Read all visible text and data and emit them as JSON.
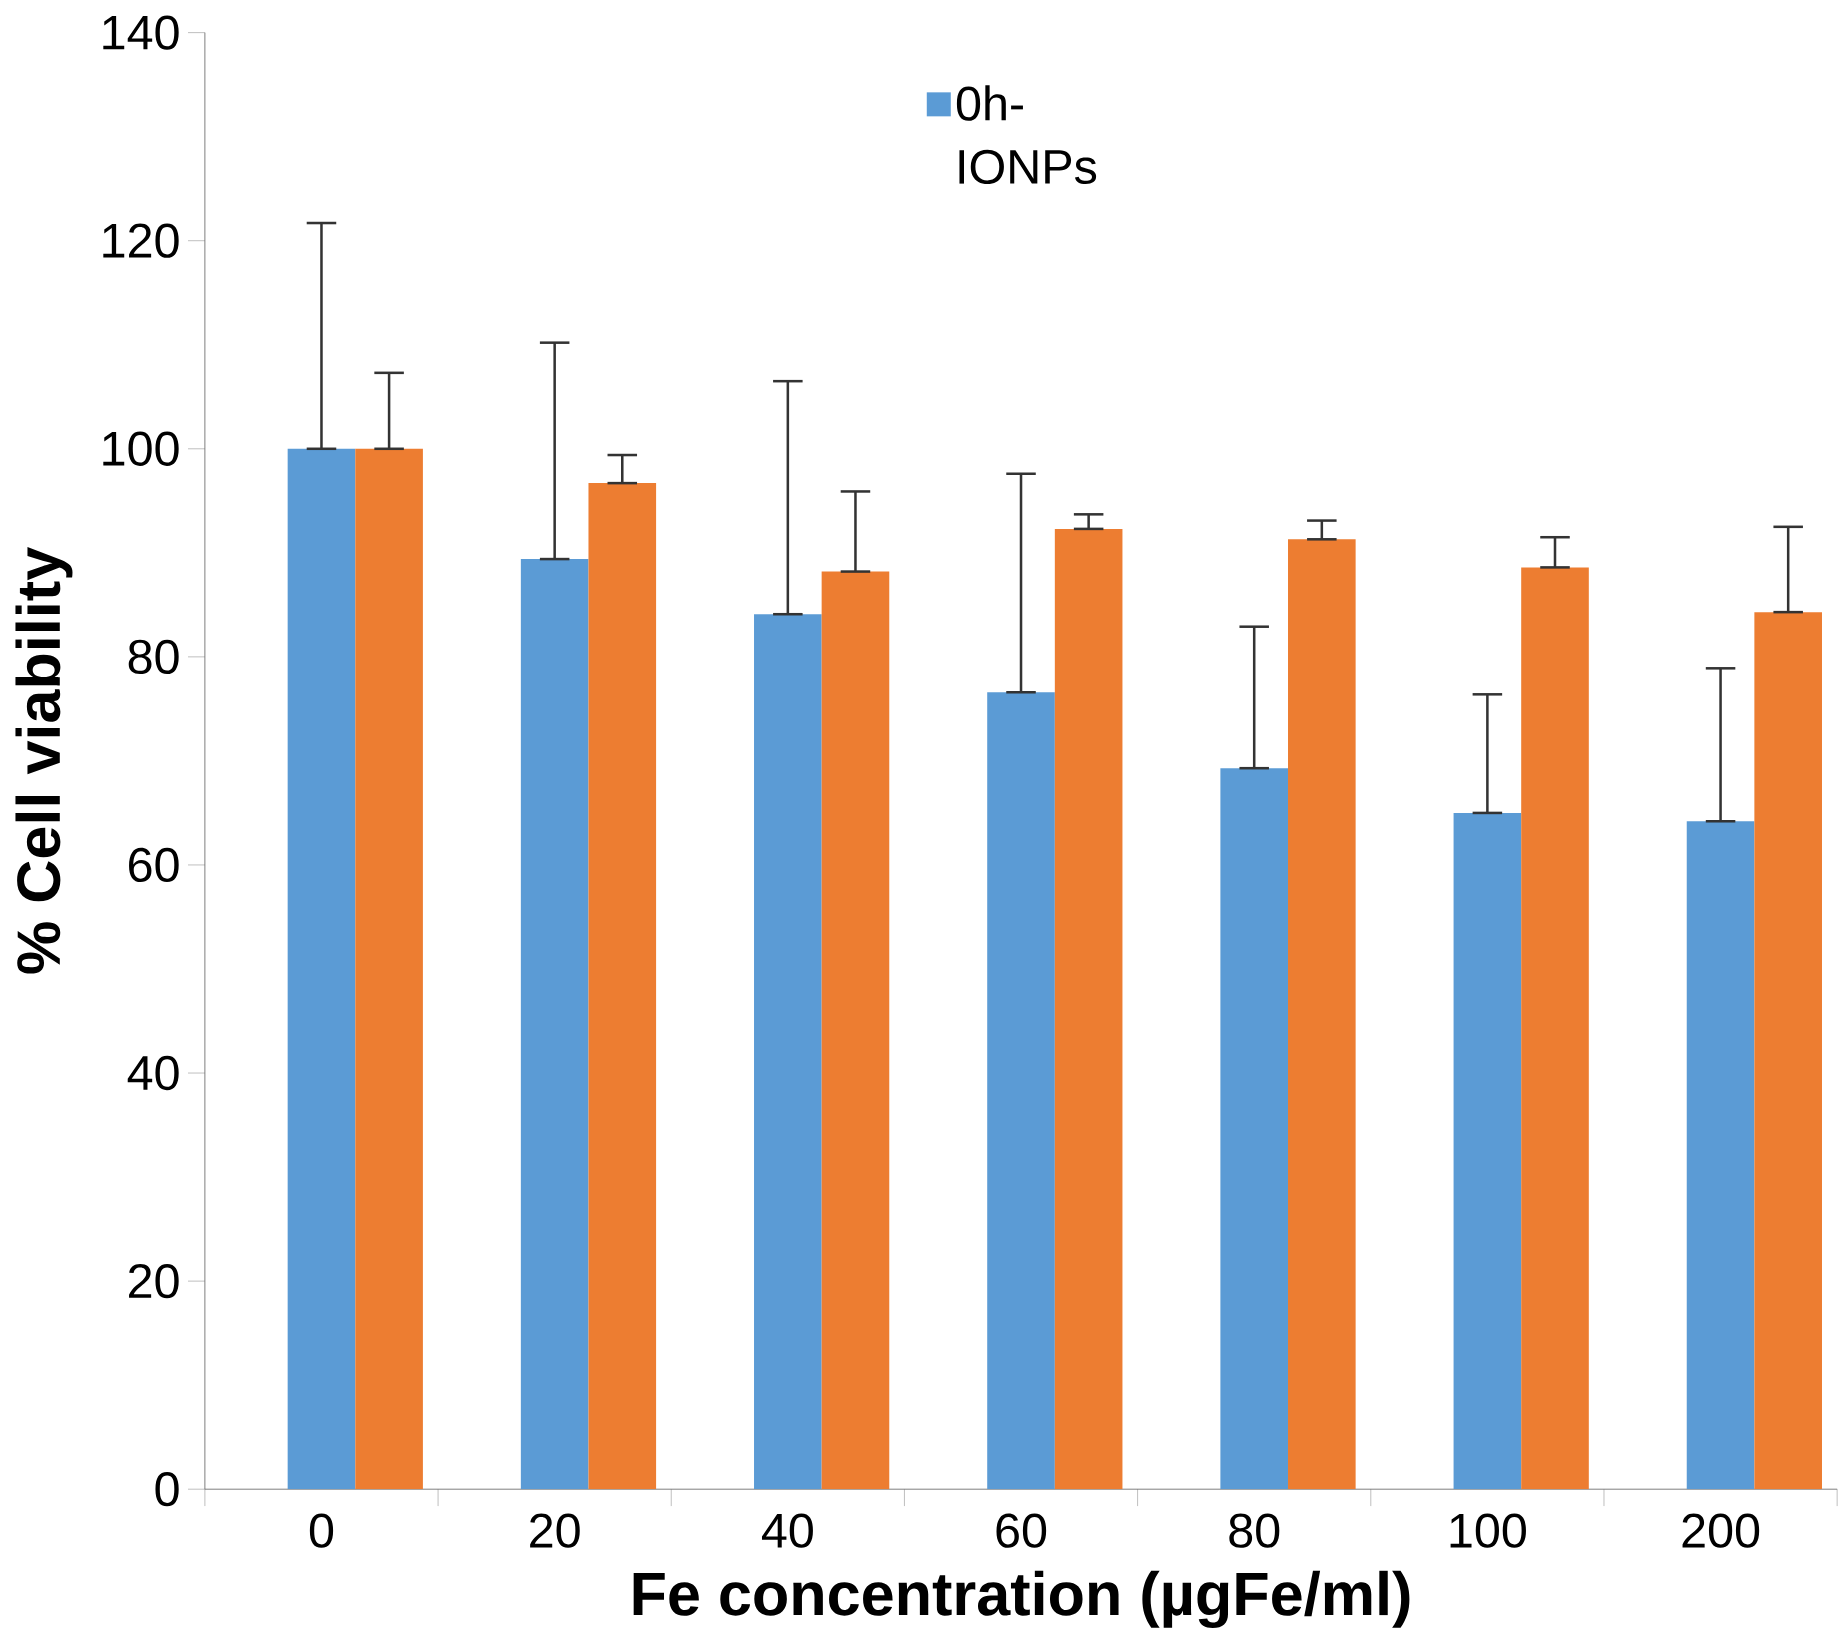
{
  "chart_data": {
    "type": "bar",
    "xlabel": "Fe concentration (µgFe/ml)",
    "ylabel": "% Cell viability",
    "categories": [
      "0",
      "20",
      "40",
      "60",
      "80",
      "100",
      "200"
    ],
    "series": [
      {
        "name": "0h-IONPs",
        "color": "#5b9bd5",
        "values": [
          100,
          89.4,
          84.1,
          76.6,
          69.3,
          65.0,
          64.2
        ],
        "errors": [
          [
            100,
            121.7
          ],
          [
            89.4,
            110.2
          ],
          [
            84.1,
            106.5
          ],
          [
            76.6,
            97.6
          ],
          [
            69.3,
            82.9
          ],
          [
            65.0,
            76.4
          ],
          [
            64.2,
            78.9
          ]
        ]
      },
      {
        "color": "#ed7d31",
        "values": [
          100,
          96.7,
          88.2,
          92.3,
          91.3,
          88.6,
          84.3
        ],
        "errors": [
          [
            100,
            107.3
          ],
          [
            96.7,
            99.4
          ],
          [
            88.2,
            95.9
          ],
          [
            92.3,
            93.7
          ],
          [
            91.3,
            93.1
          ],
          [
            88.6,
            91.5
          ],
          [
            84.3,
            92.5
          ]
        ]
      }
    ],
    "ylim": [
      0,
      140
    ],
    "yticks": [
      0,
      20,
      40,
      60,
      80,
      100,
      120,
      140
    ],
    "grid": false,
    "legend": "top"
  }
}
